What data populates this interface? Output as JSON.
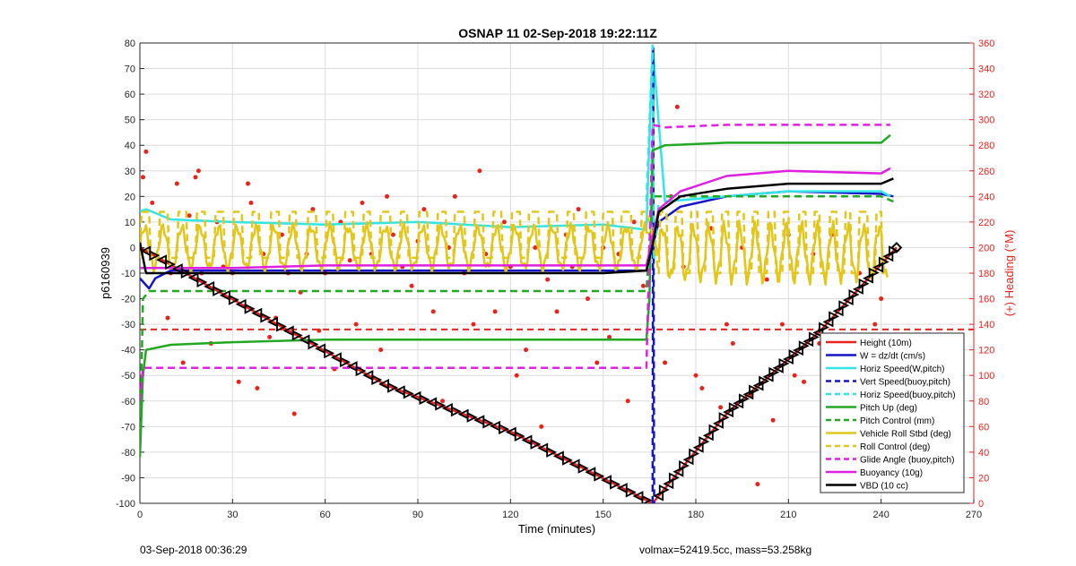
{
  "chart_data": {
    "type": "line",
    "title": "OSNAP 11 02-Sep-2018 19:22:11Z",
    "xlabel": "Time (minutes)",
    "ylabel_left": "p6160939",
    "ylabel_right": "(+) Heading (°M)",
    "xlim": [
      0,
      270
    ],
    "ylim_left": [
      -100,
      80
    ],
    "ylim_right": [
      0,
      360
    ],
    "x_ticks": [
      0,
      30,
      60,
      90,
      120,
      150,
      180,
      210,
      240,
      270
    ],
    "y_ticks_left": [
      80,
      70,
      60,
      50,
      40,
      30,
      20,
      10,
      0,
      -10,
      -20,
      -30,
      -40,
      -50,
      -60,
      -70,
      -80,
      -90,
      -100
    ],
    "y_ticks_right": [
      360,
      340,
      320,
      300,
      280,
      260,
      240,
      220,
      200,
      180,
      160,
      140,
      120,
      100,
      80,
      60,
      40,
      20,
      0
    ],
    "grid": true,
    "legend_position": "lower-right",
    "series": [
      {
        "name": "Height (10m)",
        "color": "#e8231c",
        "style": "solid",
        "x": [
          0,
          40,
          80,
          120,
          166,
          190,
          220,
          245
        ],
        "y": [
          0,
          -27,
          -54,
          -72,
          -100,
          -65,
          -33,
          0
        ]
      },
      {
        "name": "W = dz/dt (cm/s)",
        "color": "#1515c8",
        "style": "solid",
        "x": [
          0,
          3,
          5,
          10,
          30,
          60,
          90,
          120,
          150,
          164,
          168,
          175,
          190,
          210,
          240,
          244
        ],
        "y": [
          -12,
          -16,
          -12,
          -9,
          -9,
          -9,
          -9,
          -9,
          -9,
          -9,
          10,
          16,
          20,
          22,
          21,
          20
        ]
      },
      {
        "name": "Horiz Speed(W,pitch)",
        "color": "#33e5e5",
        "style": "solid",
        "x": [
          0,
          2,
          10,
          30,
          60,
          90,
          120,
          150,
          164,
          166,
          170,
          190,
          210,
          240,
          243
        ],
        "y": [
          14,
          15,
          11,
          10,
          9,
          10,
          8,
          9,
          7,
          79,
          18,
          20,
          22,
          22,
          20
        ]
      },
      {
        "name": "Vert Speed(buoy,pitch)",
        "color": "#1515c8",
        "style": "dashed",
        "x": [
          166,
          166.2,
          166.5
        ],
        "y": [
          -100,
          78,
          -100
        ]
      },
      {
        "name": "Horiz Speed(buoy,pitch)",
        "color": "#33e5e5",
        "style": "dashed",
        "x": [
          164,
          166,
          166.4,
          168
        ],
        "y": [
          18,
          79,
          -5,
          18
        ]
      },
      {
        "name": "Pitch Up (deg)",
        "color": "#22a822",
        "style": "solid",
        "x": [
          0,
          1,
          2,
          10,
          30,
          60,
          90,
          120,
          150,
          164,
          165,
          166,
          170,
          190,
          210,
          240,
          243
        ],
        "y": [
          -82,
          -50,
          -40,
          -38,
          -37,
          -36,
          -36,
          -36,
          -36,
          -36,
          -20,
          38,
          40,
          41,
          41,
          41,
          44
        ]
      },
      {
        "name": "Pitch Control (mm)",
        "color": "#22a822",
        "style": "dashed",
        "x": [
          0,
          1,
          3,
          60,
          120,
          164,
          166,
          190,
          240,
          244
        ],
        "y": [
          -80,
          -20,
          -17,
          -17,
          -17,
          -17,
          20,
          20,
          20,
          18
        ]
      },
      {
        "name": "Vehicle Roll Stbd (deg)",
        "color": "#e3c61a",
        "style": "solid",
        "x": [
          0,
          164,
          168,
          242
        ],
        "y": [
          0,
          0,
          0,
          0
        ]
      },
      {
        "name": "Roll Control (deg)",
        "color": "#e3c61a",
        "style": "dashed",
        "x": [
          0,
          164,
          168,
          242
        ],
        "y": [
          5,
          5,
          5,
          5
        ]
      },
      {
        "name": "Glide Angle (buoy,pitch)",
        "color": "#e020e0",
        "style": "dashed",
        "x": [
          0,
          1,
          3,
          60,
          120,
          164,
          166,
          170,
          190,
          240,
          243
        ],
        "y": [
          -60,
          -47,
          -47,
          -47,
          -47,
          -47,
          48,
          47,
          48,
          48,
          48
        ]
      },
      {
        "name": "Buoyancy (10g)",
        "color": "#e020e0",
        "style": "solid",
        "x": [
          0,
          5,
          30,
          60,
          90,
          120,
          150,
          164,
          168,
          175,
          190,
          210,
          240,
          243
        ],
        "y": [
          -8,
          -8,
          -8,
          -7,
          -7,
          -7,
          -7,
          -7,
          15,
          22,
          28,
          30,
          29,
          31
        ]
      },
      {
        "name": "VBD (10 cc)",
        "color": "#000000",
        "style": "solid",
        "x": [
          0,
          2,
          10,
          30,
          60,
          90,
          120,
          150,
          164,
          166,
          168,
          175,
          190,
          210,
          240,
          244
        ],
        "y": [
          2,
          -10,
          -10,
          -10,
          -10,
          -10,
          -10,
          -10,
          -9,
          1,
          14,
          20,
          23,
          25,
          25,
          27
        ]
      }
    ],
    "heading_scatter_deg": [
      [
        1,
        255
      ],
      [
        2,
        275
      ],
      [
        4,
        235
      ],
      [
        7,
        190
      ],
      [
        9,
        145
      ],
      [
        10,
        180
      ],
      [
        12,
        250
      ],
      [
        14,
        110
      ],
      [
        16,
        225
      ],
      [
        18,
        255
      ],
      [
        19,
        260
      ],
      [
        20,
        180
      ],
      [
        23,
        125
      ],
      [
        25,
        220
      ],
      [
        27,
        185
      ],
      [
        30,
        180
      ],
      [
        32,
        95
      ],
      [
        35,
        250
      ],
      [
        36,
        235
      ],
      [
        38,
        90
      ],
      [
        40,
        195
      ],
      [
        42,
        130
      ],
      [
        44,
        145
      ],
      [
        46,
        210
      ],
      [
        48,
        180
      ],
      [
        50,
        70
      ],
      [
        52,
        165
      ],
      [
        54,
        195
      ],
      [
        56,
        230
      ],
      [
        58,
        135
      ],
      [
        60,
        180
      ],
      [
        63,
        105
      ],
      [
        65,
        220
      ],
      [
        68,
        190
      ],
      [
        70,
        140
      ],
      [
        72,
        235
      ],
      [
        75,
        195
      ],
      [
        78,
        120
      ],
      [
        80,
        240
      ],
      [
        82,
        210
      ],
      [
        85,
        185
      ],
      [
        88,
        170
      ],
      [
        90,
        205
      ],
      [
        92,
        230
      ],
      [
        95,
        150
      ],
      [
        98,
        80
      ],
      [
        100,
        200
      ],
      [
        102,
        240
      ],
      [
        105,
        180
      ],
      [
        108,
        140
      ],
      [
        110,
        260
      ],
      [
        112,
        195
      ],
      [
        115,
        150
      ],
      [
        118,
        220
      ],
      [
        120,
        185
      ],
      [
        122,
        100
      ],
      [
        125,
        120
      ],
      [
        128,
        200
      ],
      [
        130,
        60
      ],
      [
        132,
        175
      ],
      [
        135,
        150
      ],
      [
        138,
        210
      ],
      [
        140,
        185
      ],
      [
        142,
        230
      ],
      [
        145,
        160
      ],
      [
        148,
        110
      ],
      [
        150,
        200
      ],
      [
        152,
        130
      ],
      [
        155,
        195
      ],
      [
        158,
        80
      ],
      [
        160,
        220
      ],
      [
        163,
        170
      ],
      [
        170,
        110
      ],
      [
        172,
        240
      ],
      [
        174,
        310
      ],
      [
        176,
        185
      ],
      [
        180,
        100
      ],
      [
        182,
        90
      ],
      [
        185,
        215
      ],
      [
        188,
        75
      ],
      [
        190,
        140
      ],
      [
        192,
        125
      ],
      [
        195,
        200
      ],
      [
        198,
        85
      ],
      [
        200,
        15
      ],
      [
        203,
        175
      ],
      [
        205,
        65
      ],
      [
        208,
        140
      ],
      [
        210,
        210
      ],
      [
        212,
        100
      ],
      [
        215,
        95
      ],
      [
        218,
        195
      ],
      [
        220,
        125
      ],
      [
        222,
        75
      ],
      [
        224,
        210
      ],
      [
        228,
        130
      ],
      [
        230,
        115
      ],
      [
        233,
        180
      ],
      [
        235,
        120
      ],
      [
        238,
        140
      ],
      [
        240,
        160
      ],
      [
        242,
        130
      ]
    ],
    "heading_reference_deg": 136,
    "marker_count_descent": 64,
    "marker_count_ascent": 48
  },
  "footer": {
    "left": "03-Sep-2018 00:36:29",
    "right": "volmax=52419.5cc, mass=53.258kg"
  }
}
